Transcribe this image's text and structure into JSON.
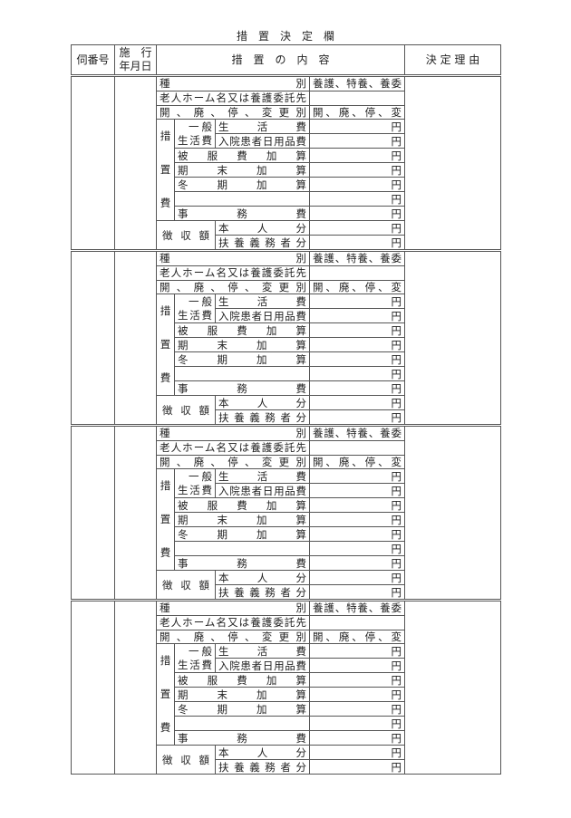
{
  "title": "措　置　決　定　欄",
  "header": {
    "col_number": "伺番号",
    "col_date_line1": "施　行",
    "col_date_line2": "年月日",
    "col_content": "措　置　の　内　容",
    "col_reason": "決 定 理 由"
  },
  "labels": {
    "type": "種別",
    "type_value": "養護、特養、養委",
    "home_name": "老人ホーム名又は養護委託先",
    "change_type": "開、廃、停、変更別",
    "change_value": "開、廃、停、変",
    "cost_vertical": [
      "措",
      "置",
      "費"
    ],
    "general_line1": "一般",
    "general_line2": "生活費",
    "living_cost": "生活費",
    "inpatient": "入院患者日用品費",
    "clothing": "被服費加算",
    "yearend": "期末加算",
    "winter": "冬期加算",
    "office": "事務費",
    "collection": "徴収額",
    "self": "本人分",
    "supporter": "扶養義務者分",
    "yen": "円"
  },
  "block_count": 4
}
